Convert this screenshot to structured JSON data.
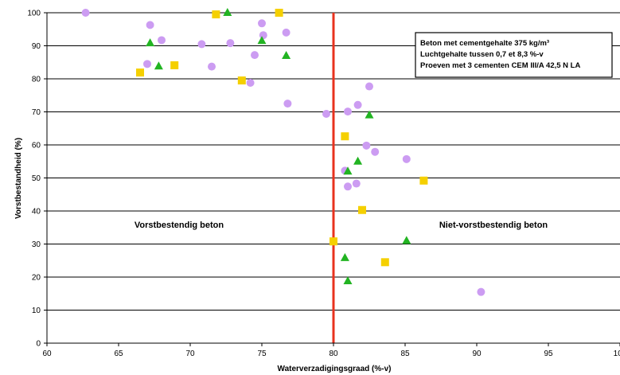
{
  "chart_data": {
    "type": "scatter",
    "xlabel": "Waterverzadigingsgraad (%-v)",
    "ylabel": "Vorstbestandheid (%)",
    "xlim": [
      60,
      100
    ],
    "ylim": [
      0,
      100
    ],
    "x_ticks": [
      "60",
      "65",
      "70",
      "75",
      "80",
      "85",
      "90",
      "95",
      "100"
    ],
    "y_ticks": [
      "0",
      "10",
      "20",
      "30",
      "40",
      "50",
      "60",
      "70",
      "80",
      "90",
      "100"
    ],
    "grid": "horizontal",
    "threshold_x": 80,
    "threshold_color": "#e8321e",
    "region_labels": {
      "left": "Vorstbestendig beton",
      "right": "Niet-vorstbestendig beton"
    },
    "info_box": [
      "Beton met cementgehalte 375 kg/m³",
      "Luchtgehalte tussen 0,7 et 8,3 %-v",
      "Proeven met 3 cementen CEM III/A 42,5 N LA"
    ],
    "series": [
      {
        "marker": "circle",
        "color": "#cc9cf2",
        "points": [
          [
            62.7,
            100
          ],
          [
            67.2,
            96.3
          ],
          [
            68.0,
            91.7
          ],
          [
            70.8,
            90.5
          ],
          [
            72.8,
            90.8
          ],
          [
            75.0,
            96.8
          ],
          [
            75.1,
            93.2
          ],
          [
            76.7,
            94.0
          ],
          [
            74.5,
            87.2
          ],
          [
            67.0,
            84.5
          ],
          [
            71.5,
            83.7
          ],
          [
            74.2,
            78.8
          ],
          [
            76.8,
            72.5
          ],
          [
            79.5,
            69.4
          ],
          [
            81.0,
            70.1
          ],
          [
            81.7,
            72.1
          ],
          [
            82.5,
            77.7
          ],
          [
            82.3,
            59.8
          ],
          [
            82.9,
            57.9
          ],
          [
            85.1,
            55.7
          ],
          [
            80.8,
            52.2
          ],
          [
            81.0,
            47.4
          ],
          [
            81.6,
            48.3
          ],
          [
            90.3,
            15.5
          ]
        ]
      },
      {
        "marker": "triangle",
        "color": "#22b422",
        "points": [
          [
            72.6,
            100
          ],
          [
            67.2,
            90.8
          ],
          [
            67.8,
            83.8
          ],
          [
            75.0,
            91.5
          ],
          [
            76.7,
            87.0
          ],
          [
            82.5,
            69.0
          ],
          [
            81.0,
            52.0
          ],
          [
            81.7,
            55.0
          ],
          [
            85.1,
            31.0
          ],
          [
            80.8,
            25.8
          ],
          [
            81.0,
            18.8
          ]
        ]
      },
      {
        "marker": "square",
        "color": "#f5d000",
        "points": [
          [
            71.8,
            99.5
          ],
          [
            76.2,
            100
          ],
          [
            66.5,
            81.9
          ],
          [
            68.9,
            84.1
          ],
          [
            73.6,
            79.5
          ],
          [
            80.8,
            62.6
          ],
          [
            86.3,
            49.2
          ],
          [
            82.0,
            40.3
          ],
          [
            80.0,
            30.8
          ],
          [
            83.6,
            24.5
          ]
        ]
      }
    ]
  }
}
